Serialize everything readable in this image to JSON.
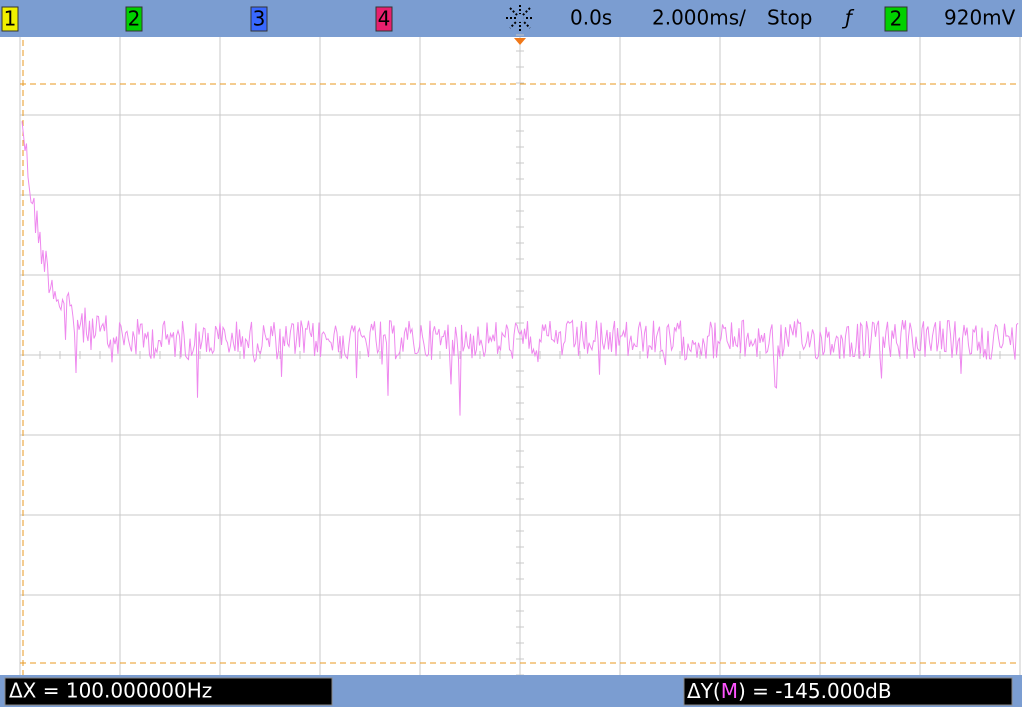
{
  "toolbar": {
    "channels": [
      "1",
      "2",
      "3",
      "4"
    ],
    "time_offset": "0.0s",
    "time_scale": "2.000ms/",
    "run_state": "Stop",
    "trigger_edge": "ƒ",
    "trigger_source": "2",
    "trigger_level": "920mV"
  },
  "readout": {
    "delta_x": "ΔX = 100.000000Hz",
    "delta_y_prefix": "ΔY(",
    "delta_y_source": "M",
    "delta_y_suffix": ") = -145.000dB"
  }
}
